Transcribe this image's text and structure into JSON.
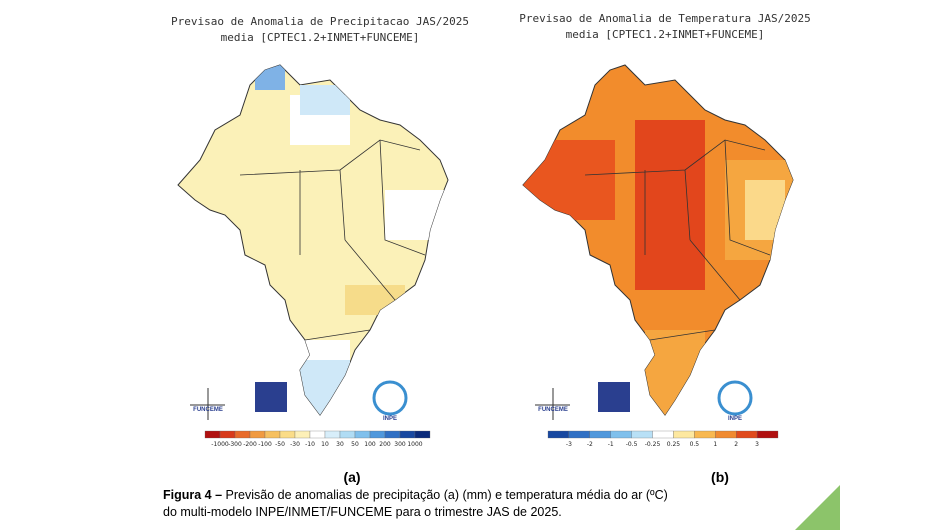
{
  "figure": {
    "left": {
      "title": "Previsao de Anomalia de Precipitacao JAS/2025",
      "subtitle": "media [CPTEC1.2+INMET+FUNCEME]",
      "colorbar": [
        "-1000",
        "-300",
        "-200",
        "-100",
        "-50",
        "-30",
        "-10",
        "10",
        "30",
        "50",
        "100",
        "200",
        "300",
        "1000"
      ],
      "panel": "(a)"
    },
    "right": {
      "title": "Previsao de Anomalia de Temperatura JAS/2025",
      "subtitle": "media [CPTEC1.2+INMET+FUNCEME]",
      "colorbar": [
        "-3",
        "-2",
        "-1",
        "-0.5",
        "-0.25",
        "0.25",
        "0.5",
        "1",
        "2",
        "3"
      ],
      "panel": "(b)"
    },
    "logos": [
      "FUNCEME",
      "INMET",
      "INPE"
    ],
    "caption": {
      "label": "Figura 4 –",
      "line1": " Previsão de anomalias de precipitação (a) (mm) e temperatura média do ar (ºC)",
      "line2": "do multi-modelo INPE/INMET/FUNCEME para o trimestre JAS de 2025."
    }
  }
}
